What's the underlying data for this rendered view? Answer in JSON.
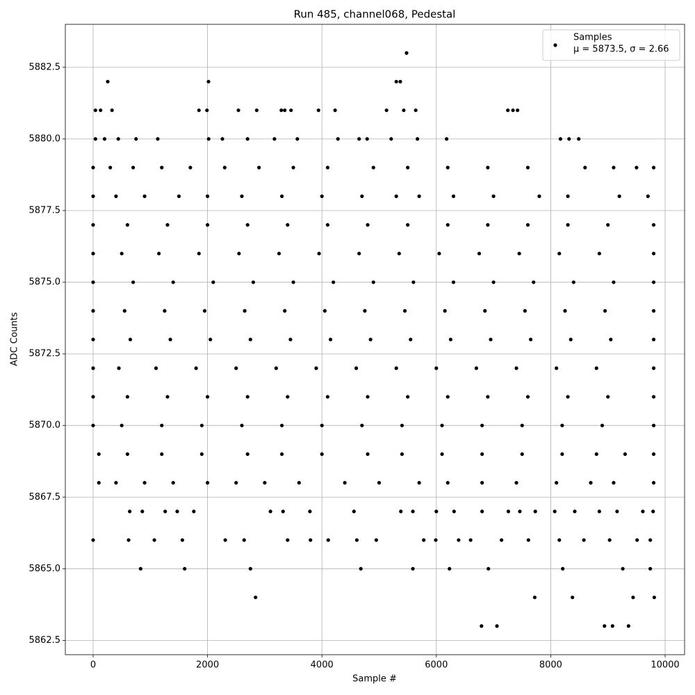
{
  "chart_data": {
    "type": "scatter",
    "title": "Run 485, channel068, Pedestal",
    "x_label": "Sample #",
    "y_label": "ADC Counts",
    "xlim": [
      -486,
      10340
    ],
    "ylim": [
      5862.0,
      5884.0
    ],
    "xticks": [
      0,
      2000,
      4000,
      6000,
      8000,
      10000
    ],
    "yticks": [
      5862.5,
      {
        "value": 5865,
        "label": "5865.0"
      },
      5867.5,
      {
        "value": 5870,
        "label": "5870.0"
      },
      5872.5,
      {
        "value": 5875,
        "label": "5875.0"
      },
      5877.5,
      {
        "value": 5880,
        "label": "5880.0"
      },
      5882.5
    ],
    "grid": true,
    "legend_position": "upper right",
    "series": [
      {
        "name": "Samples",
        "stats": "μ = 5873.5, σ = 2.66",
        "color": "#000000",
        "x": [
          5480,
          255,
          2017,
          5300,
          5370,
          40,
          130,
          330,
          1850,
          1990,
          2540,
          2860,
          3290,
          3350,
          3460,
          3940,
          4230,
          5130,
          5430,
          5640,
          7250,
          7340,
          7420,
          40,
          200,
          440,
          750,
          1130,
          2020,
          2260,
          2700,
          3170,
          3570,
          4280,
          4650,
          4790,
          5210,
          5670,
          6180,
          8170,
          8320,
          8490,
          0,
          300,
          700,
          1200,
          1700,
          2300,
          2900,
          3500,
          4100,
          4900,
          5500,
          6200,
          6900,
          7600,
          8600,
          9100,
          9500,
          9800,
          0,
          400,
          900,
          1500,
          2000,
          2600,
          3300,
          4000,
          4700,
          5300,
          5700,
          6300,
          7000,
          7800,
          8300,
          9200,
          9700,
          0,
          600,
          1300,
          2000,
          2700,
          3400,
          4100,
          4800,
          5500,
          6200,
          6900,
          7600,
          8300,
          9000,
          9800,
          0,
          500,
          1150,
          1850,
          2550,
          3250,
          3950,
          4650,
          5350,
          6050,
          6750,
          7450,
          8150,
          8850,
          9800,
          0,
          700,
          1400,
          2100,
          2800,
          3500,
          4200,
          4900,
          5600,
          6300,
          7000,
          7700,
          8400,
          9100,
          9800,
          0,
          550,
          1250,
          1950,
          2650,
          3350,
          4050,
          4750,
          5450,
          6150,
          6850,
          7550,
          8250,
          8950,
          9800,
          0,
          650,
          1350,
          2050,
          2750,
          3450,
          4150,
          4850,
          5550,
          6250,
          6950,
          7650,
          8350,
          9050,
          9800,
          0,
          450,
          1100,
          1800,
          2500,
          3200,
          3900,
          4600,
          5300,
          6000,
          6700,
          7400,
          8100,
          8800,
          9800,
          0,
          600,
          1300,
          2000,
          2700,
          3400,
          4100,
          4800,
          5500,
          6200,
          6900,
          7600,
          8300,
          9000,
          9800,
          0,
          500,
          1200,
          1900,
          2600,
          3300,
          4000,
          4700,
          5400,
          6100,
          6800,
          7500,
          8200,
          8900,
          9800,
          100,
          600,
          1200,
          1900,
          2700,
          3300,
          4000,
          4800,
          5400,
          6100,
          6800,
          7500,
          8200,
          8800,
          9300,
          9800,
          100,
          400,
          900,
          1400,
          2000,
          2500,
          3000,
          3600,
          4400,
          5000,
          5700,
          6200,
          6800,
          7400,
          8100,
          8700,
          9100,
          9800,
          640,
          860,
          1260,
          1470,
          1760,
          3100,
          3320,
          3790,
          4560,
          5380,
          5590,
          6000,
          6310,
          6800,
          7260,
          7460,
          7730,
          8070,
          8420,
          8850,
          9160,
          9610,
          9790,
          0,
          620,
          1070,
          1560,
          2310,
          2640,
          3400,
          3800,
          4110,
          4610,
          4950,
          5780,
          5990,
          6390,
          6600,
          7140,
          7610,
          8150,
          8580,
          9030,
          9510,
          9740,
          830,
          1600,
          2750,
          4680,
          5590,
          6230,
          6910,
          8210,
          9260,
          9740,
          2840,
          7720,
          8380,
          9440,
          9810,
          6790,
          7060,
          8940,
          9080,
          9360
        ],
        "values": [
          5883,
          5882,
          5882,
          5882,
          5882,
          5881,
          5881,
          5881,
          5881,
          5881,
          5881,
          5881,
          5881,
          5881,
          5881,
          5881,
          5881,
          5881,
          5881,
          5881,
          5881,
          5881,
          5881,
          5880,
          5880,
          5880,
          5880,
          5880,
          5880,
          5880,
          5880,
          5880,
          5880,
          5880,
          5880,
          5880,
          5880,
          5880,
          5880,
          5880,
          5880,
          5880,
          5879,
          5879,
          5879,
          5879,
          5879,
          5879,
          5879,
          5879,
          5879,
          5879,
          5879,
          5879,
          5879,
          5879,
          5879,
          5879,
          5879,
          5879,
          5878,
          5878,
          5878,
          5878,
          5878,
          5878,
          5878,
          5878,
          5878,
          5878,
          5878,
          5878,
          5878,
          5878,
          5878,
          5878,
          5878,
          5877,
          5877,
          5877,
          5877,
          5877,
          5877,
          5877,
          5877,
          5877,
          5877,
          5877,
          5877,
          5877,
          5877,
          5877,
          5876,
          5876,
          5876,
          5876,
          5876,
          5876,
          5876,
          5876,
          5876,
          5876,
          5876,
          5876,
          5876,
          5876,
          5876,
          5875,
          5875,
          5875,
          5875,
          5875,
          5875,
          5875,
          5875,
          5875,
          5875,
          5875,
          5875,
          5875,
          5875,
          5875,
          5874,
          5874,
          5874,
          5874,
          5874,
          5874,
          5874,
          5874,
          5874,
          5874,
          5874,
          5874,
          5874,
          5874,
          5874,
          5873,
          5873,
          5873,
          5873,
          5873,
          5873,
          5873,
          5873,
          5873,
          5873,
          5873,
          5873,
          5873,
          5873,
          5873,
          5872,
          5872,
          5872,
          5872,
          5872,
          5872,
          5872,
          5872,
          5872,
          5872,
          5872,
          5872,
          5872,
          5872,
          5872,
          5871,
          5871,
          5871,
          5871,
          5871,
          5871,
          5871,
          5871,
          5871,
          5871,
          5871,
          5871,
          5871,
          5871,
          5871,
          5870,
          5870,
          5870,
          5870,
          5870,
          5870,
          5870,
          5870,
          5870,
          5870,
          5870,
          5870,
          5870,
          5870,
          5870,
          5869,
          5869,
          5869,
          5869,
          5869,
          5869,
          5869,
          5869,
          5869,
          5869,
          5869,
          5869,
          5869,
          5869,
          5869,
          5869,
          5868,
          5868,
          5868,
          5868,
          5868,
          5868,
          5868,
          5868,
          5868,
          5868,
          5868,
          5868,
          5868,
          5868,
          5868,
          5868,
          5868,
          5868,
          5867,
          5867,
          5867,
          5867,
          5867,
          5867,
          5867,
          5867,
          5867,
          5867,
          5867,
          5867,
          5867,
          5867,
          5867,
          5867,
          5867,
          5867,
          5867,
          5867,
          5867,
          5867,
          5867,
          5866,
          5866,
          5866,
          5866,
          5866,
          5866,
          5866,
          5866,
          5866,
          5866,
          5866,
          5866,
          5866,
          5866,
          5866,
          5866,
          5866,
          5866,
          5866,
          5866,
          5866,
          5866,
          5865,
          5865,
          5865,
          5865,
          5865,
          5865,
          5865,
          5865,
          5865,
          5865,
          5864,
          5864,
          5864,
          5864,
          5864,
          5863,
          5863,
          5863,
          5863,
          5863
        ]
      }
    ]
  }
}
